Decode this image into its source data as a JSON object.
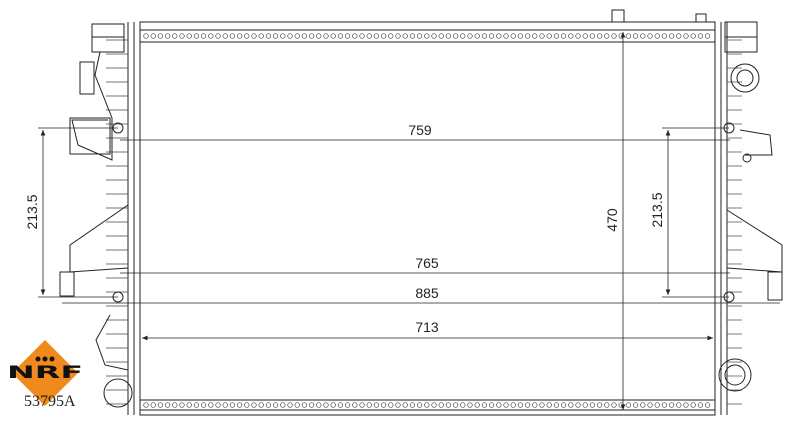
{
  "drawing": {
    "dimensions": {
      "width_top": "759",
      "width_middle": "765",
      "width_overall": "885",
      "core_width": "713",
      "height": "470",
      "mount_left": "213.5",
      "mount_right": "213.5"
    }
  },
  "brand": {
    "logo_text": "NRF",
    "part_number": "53795A",
    "logo_color": "#F08A1C"
  }
}
